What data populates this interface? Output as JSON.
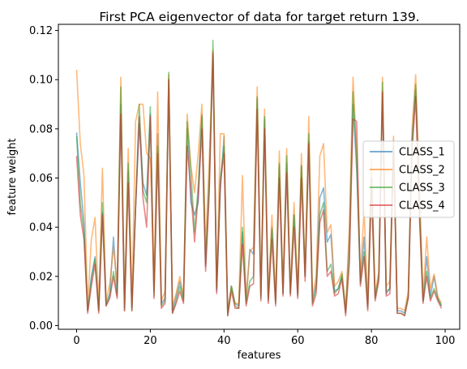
{
  "chart_data": {
    "type": "line",
    "title": "First PCA eigenvector of data for target  return 139.",
    "xlabel": "features",
    "ylabel": "feature weight",
    "xlim": [
      -4.95,
      103.95
    ],
    "ylim": [
      -0.0015,
      0.1225
    ],
    "xticks": [
      0,
      20,
      40,
      60,
      80,
      100
    ],
    "xtick_labels": [
      "0",
      "20",
      "40",
      "60",
      "80",
      "100"
    ],
    "yticks": [
      0.0,
      0.02,
      0.04,
      0.06,
      0.08,
      0.1,
      0.12
    ],
    "ytick_labels": [
      "0.00",
      "0.02",
      "0.04",
      "0.06",
      "0.08",
      "0.10",
      "0.12"
    ],
    "grid": false,
    "legend_position": "right",
    "x": [
      0,
      1,
      2,
      3,
      4,
      5,
      6,
      7,
      8,
      9,
      10,
      11,
      12,
      13,
      14,
      15,
      16,
      17,
      18,
      19,
      20,
      21,
      22,
      23,
      24,
      25,
      26,
      27,
      28,
      29,
      30,
      31,
      32,
      33,
      34,
      35,
      36,
      37,
      38,
      39,
      40,
      41,
      42,
      43,
      44,
      45,
      46,
      47,
      48,
      49,
      50,
      51,
      52,
      53,
      54,
      55,
      56,
      57,
      58,
      59,
      60,
      61,
      62,
      63,
      64,
      65,
      66,
      67,
      68,
      69,
      70,
      71,
      72,
      73,
      74,
      75,
      76,
      77,
      78,
      79,
      80,
      81,
      82,
      83,
      84,
      85,
      86,
      87,
      88,
      89,
      90,
      91,
      92,
      93,
      94,
      95,
      96,
      97,
      98,
      99
    ],
    "series": [
      {
        "name": "CLASS_1",
        "color": "#1f77b4",
        "values": [
          0.0785,
          0.058,
          0.042,
          0.006,
          0.02,
          0.028,
          0.006,
          0.046,
          0.009,
          0.013,
          0.036,
          0.013,
          0.09,
          0.007,
          0.063,
          0.007,
          0.048,
          0.082,
          0.058,
          0.053,
          0.086,
          0.014,
          0.078,
          0.009,
          0.011,
          0.1,
          0.006,
          0.012,
          0.018,
          0.011,
          0.08,
          0.05,
          0.045,
          0.05,
          0.086,
          0.024,
          0.06,
          0.11,
          0.014,
          0.055,
          0.077,
          0.005,
          0.016,
          0.009,
          0.008,
          0.038,
          0.01,
          0.031,
          0.029,
          0.092,
          0.012,
          0.084,
          0.011,
          0.04,
          0.01,
          0.065,
          0.013,
          0.066,
          0.013,
          0.045,
          0.013,
          0.065,
          0.02,
          0.075,
          0.01,
          0.017,
          0.052,
          0.056,
          0.034,
          0.037,
          0.014,
          0.015,
          0.02,
          0.006,
          0.036,
          0.09,
          0.063,
          0.018,
          0.036,
          0.008,
          0.06,
          0.012,
          0.02,
          0.095,
          0.013,
          0.015,
          0.075,
          0.006,
          0.006,
          0.005,
          0.012,
          0.075,
          0.096,
          0.05,
          0.01,
          0.028,
          0.012,
          0.02,
          0.011,
          0.008
        ]
      },
      {
        "name": "CLASS_2",
        "color": "#ff7f0e",
        "values": [
          0.104,
          0.074,
          0.061,
          0.008,
          0.035,
          0.044,
          0.008,
          0.064,
          0.01,
          0.017,
          0.032,
          0.017,
          0.101,
          0.009,
          0.072,
          0.009,
          0.083,
          0.09,
          0.09,
          0.07,
          0.068,
          0.016,
          0.095,
          0.01,
          0.014,
          0.102,
          0.008,
          0.013,
          0.02,
          0.012,
          0.086,
          0.065,
          0.054,
          0.07,
          0.09,
          0.032,
          0.068,
          0.112,
          0.016,
          0.078,
          0.078,
          0.006,
          0.016,
          0.009,
          0.009,
          0.061,
          0.011,
          0.03,
          0.032,
          0.097,
          0.013,
          0.088,
          0.012,
          0.045,
          0.011,
          0.071,
          0.015,
          0.072,
          0.015,
          0.05,
          0.014,
          0.07,
          0.022,
          0.085,
          0.012,
          0.02,
          0.069,
          0.074,
          0.038,
          0.041,
          0.016,
          0.018,
          0.022,
          0.007,
          0.04,
          0.101,
          0.07,
          0.02,
          0.047,
          0.009,
          0.068,
          0.013,
          0.022,
          0.101,
          0.016,
          0.018,
          0.077,
          0.007,
          0.007,
          0.006,
          0.014,
          0.08,
          0.102,
          0.06,
          0.012,
          0.036,
          0.015,
          0.021,
          0.012,
          0.009
        ]
      },
      {
        "name": "CLASS_3",
        "color": "#2ca02c",
        "values": [
          0.077,
          0.05,
          0.038,
          0.006,
          0.018,
          0.027,
          0.006,
          0.05,
          0.008,
          0.012,
          0.022,
          0.012,
          0.097,
          0.006,
          0.066,
          0.006,
          0.048,
          0.09,
          0.055,
          0.05,
          0.089,
          0.012,
          0.073,
          0.008,
          0.01,
          0.103,
          0.005,
          0.01,
          0.016,
          0.01,
          0.083,
          0.063,
          0.038,
          0.057,
          0.085,
          0.025,
          0.058,
          0.116,
          0.015,
          0.06,
          0.073,
          0.004,
          0.016,
          0.008,
          0.007,
          0.04,
          0.009,
          0.018,
          0.02,
          0.093,
          0.011,
          0.085,
          0.01,
          0.039,
          0.009,
          0.066,
          0.013,
          0.069,
          0.013,
          0.045,
          0.012,
          0.065,
          0.02,
          0.078,
          0.009,
          0.015,
          0.045,
          0.05,
          0.022,
          0.025,
          0.013,
          0.015,
          0.021,
          0.005,
          0.027,
          0.095,
          0.068,
          0.017,
          0.03,
          0.007,
          0.06,
          0.011,
          0.02,
          0.099,
          0.014,
          0.015,
          0.075,
          0.005,
          0.005,
          0.004,
          0.012,
          0.073,
          0.098,
          0.048,
          0.01,
          0.022,
          0.011,
          0.015,
          0.011,
          0.008
        ]
      },
      {
        "name": "CLASS_4",
        "color": "#d62728",
        "values": [
          0.069,
          0.045,
          0.035,
          0.005,
          0.016,
          0.025,
          0.005,
          0.045,
          0.008,
          0.011,
          0.02,
          0.011,
          0.086,
          0.006,
          0.058,
          0.006,
          0.048,
          0.085,
          0.052,
          0.04,
          0.085,
          0.011,
          0.07,
          0.007,
          0.009,
          0.1,
          0.005,
          0.009,
          0.014,
          0.009,
          0.073,
          0.055,
          0.034,
          0.053,
          0.08,
          0.022,
          0.054,
          0.111,
          0.013,
          0.058,
          0.07,
          0.004,
          0.014,
          0.007,
          0.007,
          0.033,
          0.008,
          0.016,
          0.017,
          0.088,
          0.01,
          0.08,
          0.009,
          0.035,
          0.008,
          0.06,
          0.012,
          0.062,
          0.012,
          0.04,
          0.011,
          0.06,
          0.018,
          0.074,
          0.008,
          0.013,
          0.042,
          0.047,
          0.02,
          0.022,
          0.012,
          0.013,
          0.019,
          0.004,
          0.025,
          0.084,
          0.083,
          0.016,
          0.028,
          0.006,
          0.055,
          0.01,
          0.018,
          0.095,
          0.012,
          0.013,
          0.073,
          0.005,
          0.005,
          0.004,
          0.011,
          0.07,
          0.093,
          0.045,
          0.009,
          0.02,
          0.01,
          0.014,
          0.01,
          0.007
        ]
      }
    ]
  }
}
